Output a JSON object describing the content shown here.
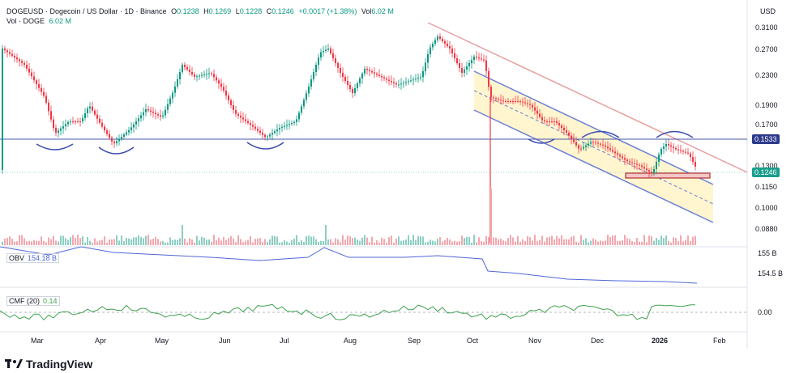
{
  "header": {
    "symbol_title": "DOGEUSD · Dogecoin / US Dollar · 1D · Binance",
    "open_label": "O",
    "open": "0.1238",
    "high_label": "H",
    "high": "0.1269",
    "low_label": "L",
    "low": "0.1228",
    "close_label": "C",
    "close": "0.1246",
    "change": "+0.0017 (+1.38%)",
    "vol_label": "Vol",
    "vol": "6.02 M",
    "vol_line_label": "Vol · DOGE",
    "vol_line_value": "6.02 M"
  },
  "indicators": {
    "obv_label": "OBV",
    "obv_value": "154.18 B",
    "cmf_label": "CMF (20)",
    "cmf_value": "0.14"
  },
  "price_axis": {
    "currency": "USD",
    "ticks": [
      "0.3100",
      "0.2700",
      "0.2300",
      "0.1900",
      "0.1700",
      "0.1300",
      "0.1150",
      "0.1000",
      "0.0880"
    ],
    "tag_resistance": "0.1533",
    "tag_last": "0.1246"
  },
  "obv_axis": {
    "ticks": [
      "155 B",
      "154.5 B"
    ]
  },
  "cmf_axis": {
    "ticks": [
      "0.00"
    ]
  },
  "time_axis": [
    "Mar",
    "Apr",
    "May",
    "Jun",
    "Jul",
    "Aug",
    "Sep",
    "Oct",
    "Nov",
    "Dec",
    "2026",
    "Feb"
  ],
  "branding": {
    "name": "TradingView"
  },
  "colors": {
    "up": "#089981",
    "down": "#f23645",
    "obv": "#4f67d8",
    "cmf": "#3fa04f",
    "channel": "#6b7fd8",
    "resistance": "#e8a0a0",
    "tag_blue": "#2d3a8c",
    "tag_green": "#1a9e8c"
  }
}
